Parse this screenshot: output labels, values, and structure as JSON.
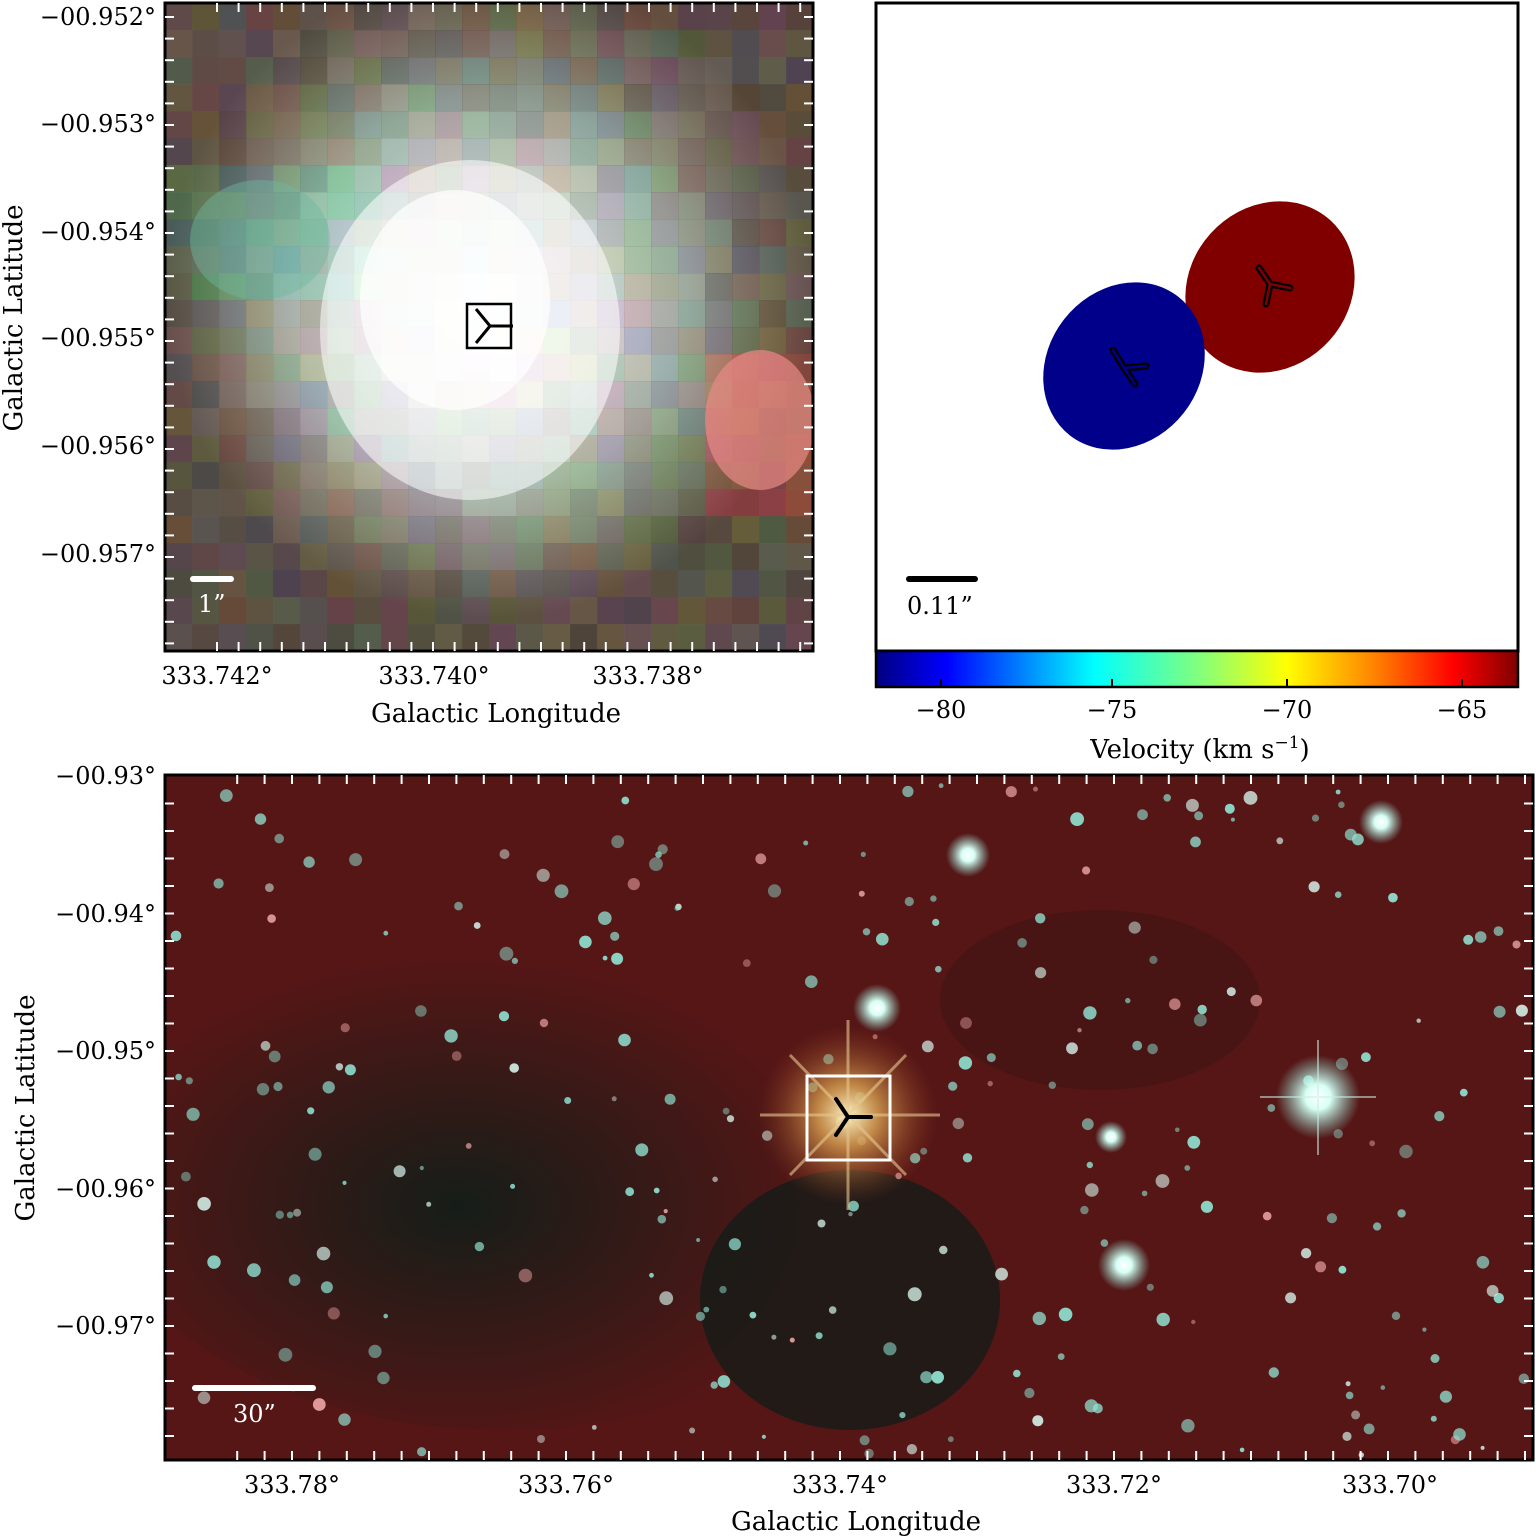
{
  "top_left_panel": {
    "xlabel": "Galactic Longitude",
    "ylabel": "Galactic Latitude",
    "x_ticks": [
      "333.742°",
      "333.740°",
      "333.738°"
    ],
    "y_ticks": [
      "−00.952°",
      "−00.953°",
      "−00.954°",
      "−00.955°",
      "−00.956°",
      "−00.957°"
    ],
    "scale_bar_label": "1”",
    "xlim": [
      333.7424,
      333.7365
    ],
    "ylim": [
      -0.958,
      -0.952
    ]
  },
  "top_right_panel": {
    "scale_bar_label": "0.11”",
    "colorbar_label": "Velocity (km s",
    "colorbar_label_sup": "−1",
    "colorbar_label_end": ")",
    "colorbar_ticks": [
      "−80",
      "−75",
      "−70",
      "−65"
    ],
    "colorbar_range": [
      -81.5,
      -63.8
    ],
    "sources": [
      {
        "name": "blue component",
        "velocity": -81,
        "color": "#00008b"
      },
      {
        "name": "red component",
        "velocity": -64,
        "color": "#800000"
      }
    ]
  },
  "bottom_panel": {
    "xlabel": "Galactic Longitude",
    "ylabel": "Galactic Latitude",
    "x_ticks": [
      "333.78°",
      "333.76°",
      "333.74°",
      "333.72°",
      "333.70°"
    ],
    "y_ticks": [
      "−00.93°",
      "−00.94°",
      "−00.95°",
      "−00.96°",
      "−00.97°"
    ],
    "scale_bar_label": "30”",
    "xlim": [
      333.7886,
      333.6886
    ],
    "ylim": [
      -0.98,
      -0.93
    ]
  },
  "colors": {
    "colorbar_stops": [
      "#00007f",
      "#0000ff",
      "#007fff",
      "#00ffff",
      "#7fff7f",
      "#ffff00",
      "#ff7f00",
      "#ff0000",
      "#7f0000"
    ],
    "background_red": "#5a1414"
  }
}
